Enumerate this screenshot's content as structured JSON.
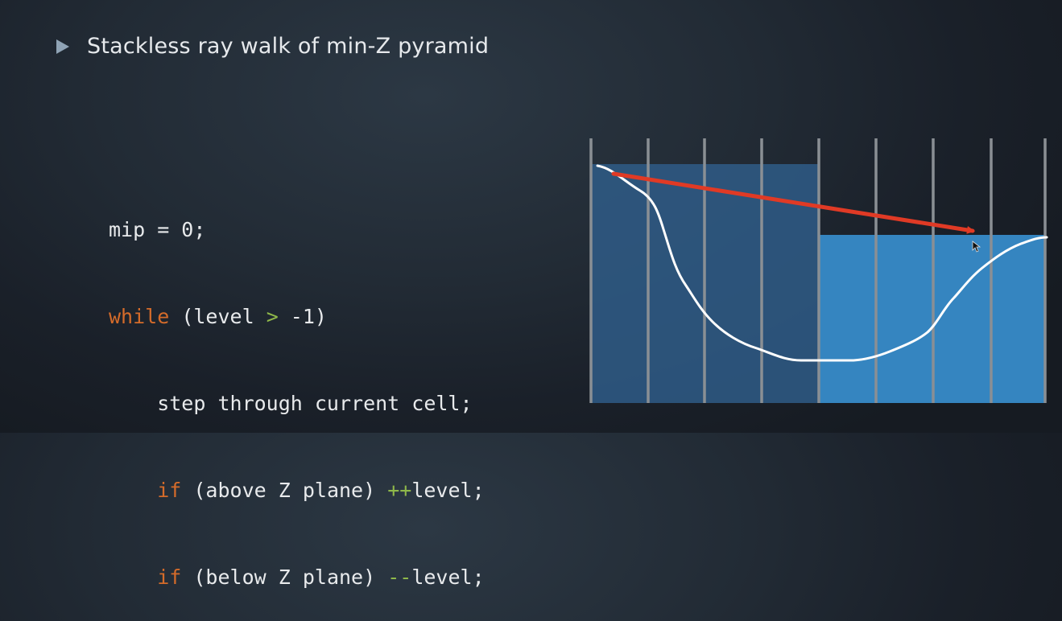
{
  "slide": {
    "bullet_icon": "triangle-bullet-icon",
    "bullet_text": "Stackless ray walk of min-Z pyramid"
  },
  "code": {
    "line1": {
      "text": "mip = 0;"
    },
    "line2": {
      "kw": "while",
      "a": " (level ",
      "op": ">",
      "b": " -1)"
    },
    "line3": {
      "text": "    step through current cell;"
    },
    "line4": {
      "indent": "    ",
      "kw": "if",
      "a": " (above Z plane) ",
      "op": "++",
      "b": "level;"
    },
    "line5": {
      "indent": "    ",
      "kw": "if",
      "a": " (below Z plane) ",
      "op": "--",
      "b": "level;"
    }
  },
  "colors": {
    "keyword": "#d46b2a",
    "operator": "#8fb84a",
    "dark_cell_block": "#2f5c87",
    "light_cell_block": "#3585c0",
    "ray_arrow": "#e03a25",
    "depth_curve": "#ffffff",
    "cell_boundary": "#8a8f94"
  }
}
